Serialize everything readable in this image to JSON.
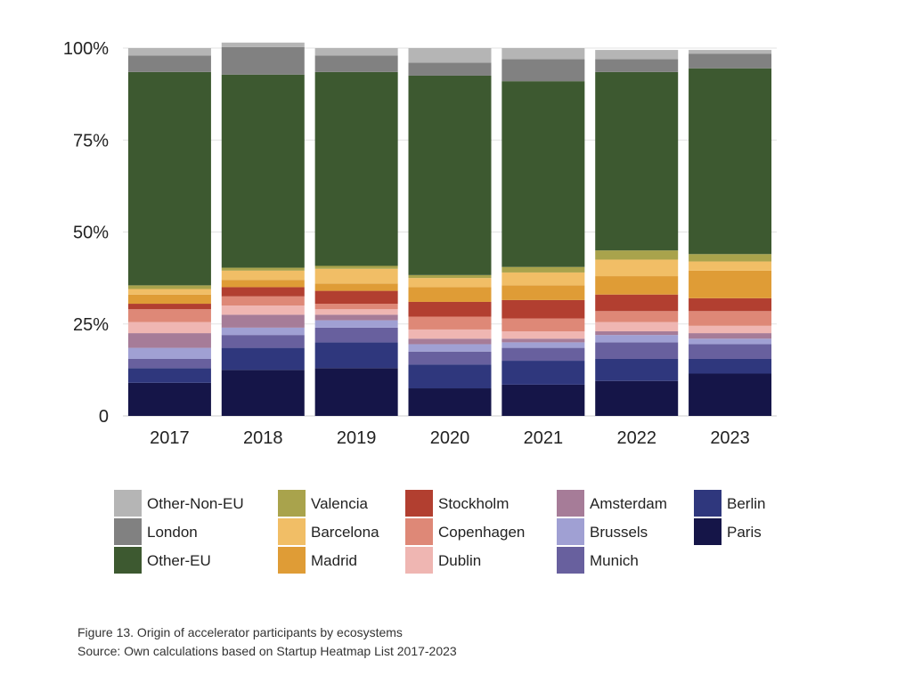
{
  "chart_data": {
    "type": "bar",
    "stacked": true,
    "normalized": true,
    "categories": [
      "2017",
      "2018",
      "2019",
      "2020",
      "2021",
      "2022",
      "2023"
    ],
    "y_ticks": [
      "0",
      "25%",
      "50%",
      "75%",
      "100%"
    ],
    "ylim": [
      0,
      100
    ],
    "grid": true,
    "legend_position": "bottom",
    "series": [
      {
        "name": "Paris",
        "color": "#151548",
        "values": [
          9.0,
          12.5,
          13.0,
          7.5,
          8.5,
          9.5,
          11.5
        ]
      },
      {
        "name": "Berlin",
        "color": "#2f377d",
        "values": [
          4.0,
          6.0,
          7.0,
          6.5,
          6.5,
          6.0,
          4.0
        ]
      },
      {
        "name": "Munich",
        "color": "#68609e",
        "values": [
          2.5,
          3.5,
          4.0,
          3.5,
          3.5,
          4.5,
          4.0
        ]
      },
      {
        "name": "Brussels",
        "color": "#a0a0d3",
        "values": [
          3.0,
          2.0,
          2.0,
          2.0,
          1.5,
          2.0,
          1.5
        ]
      },
      {
        "name": "Amsterdam",
        "color": "#a67c98",
        "values": [
          4.0,
          3.5,
          1.5,
          1.5,
          1.0,
          1.0,
          1.5
        ]
      },
      {
        "name": "Dublin",
        "color": "#efb6b2",
        "values": [
          3.0,
          2.5,
          1.5,
          2.5,
          2.0,
          2.5,
          2.0
        ]
      },
      {
        "name": "Copenhagen",
        "color": "#de8877",
        "values": [
          3.5,
          2.5,
          1.5,
          3.5,
          3.5,
          3.0,
          4.0
        ]
      },
      {
        "name": "Stockholm",
        "color": "#b23f30",
        "values": [
          1.5,
          2.5,
          3.5,
          4.0,
          5.0,
          4.5,
          3.5
        ]
      },
      {
        "name": "Madrid",
        "color": "#df9c36",
        "values": [
          2.5,
          2.0,
          2.0,
          4.0,
          4.0,
          5.0,
          7.5
        ]
      },
      {
        "name": "Barcelona",
        "color": "#f1be66",
        "values": [
          1.5,
          2.5,
          4.0,
          2.5,
          3.5,
          4.5,
          2.5
        ]
      },
      {
        "name": "Valencia",
        "color": "#a9a34c",
        "values": [
          1.0,
          0.8,
          0.8,
          0.8,
          1.5,
          2.5,
          2.0
        ]
      },
      {
        "name": "Other-EU",
        "color": "#3d5930",
        "values": [
          58.0,
          52.5,
          52.7,
          54.2,
          50.5,
          48.5,
          50.5
        ]
      },
      {
        "name": "London",
        "color": "#818181",
        "values": [
          4.5,
          7.5,
          4.5,
          3.5,
          6.0,
          3.5,
          4.0
        ]
      },
      {
        "name": "Other-Non-EU",
        "color": "#b5b5b5",
        "values": [
          2.0,
          1.2,
          2.0,
          4.0,
          3.0,
          2.5,
          1.0
        ]
      }
    ]
  },
  "legend_columns": [
    [
      "Other-Non-EU",
      "London",
      "Other-EU"
    ],
    [
      "Valencia",
      "Barcelona",
      "Madrid"
    ],
    [
      "Stockholm",
      "Copenhagen",
      "Dublin"
    ],
    [
      "Amsterdam",
      "Brussels",
      "Munich"
    ],
    [
      "Berlin",
      "Paris"
    ]
  ],
  "caption": {
    "title": "Figure 13. Origin of accelerator participants by ecosystems",
    "source": "Source: Own calculations based on Startup Heatmap List 2017-2023"
  }
}
